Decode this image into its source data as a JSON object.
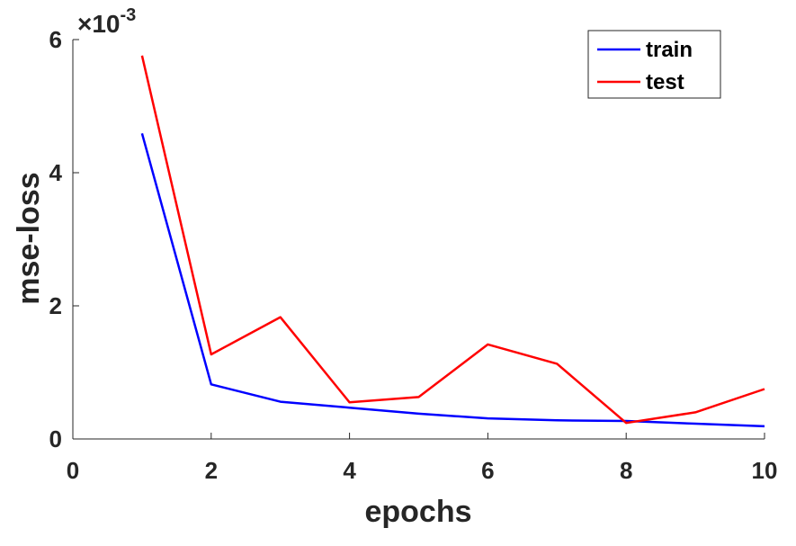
{
  "chart_data": {
    "type": "line",
    "title": "",
    "xlabel": "epochs",
    "ylabel": "mse-loss",
    "xlim": [
      0,
      10
    ],
    "ylim": [
      0,
      0.006
    ],
    "x_ticks": [
      "0",
      "2",
      "4",
      "6",
      "8",
      "10"
    ],
    "x_tick_values": [
      0,
      2,
      4,
      6,
      8,
      10
    ],
    "y_ticks": [
      "0",
      "2",
      "4",
      "6"
    ],
    "y_tick_values": [
      0,
      0.002,
      0.004,
      0.006
    ],
    "y_exponent": {
      "base": "×10",
      "power": "-3"
    },
    "grid": false,
    "legend_position": "top-right",
    "x": [
      1,
      2,
      3,
      4,
      5,
      6,
      7,
      8,
      9,
      10
    ],
    "series": [
      {
        "name": "train",
        "color": "#0000ff",
        "values": [
          0.00459,
          0.00082,
          0.00056,
          0.00047,
          0.00038,
          0.00031,
          0.00028,
          0.00027,
          0.00023,
          0.00019
        ]
      },
      {
        "name": "test",
        "color": "#ff0000",
        "values": [
          0.00576,
          0.00127,
          0.00183,
          0.00055,
          0.00063,
          0.00142,
          0.00113,
          0.00024,
          0.0004,
          0.00075
        ]
      }
    ]
  }
}
